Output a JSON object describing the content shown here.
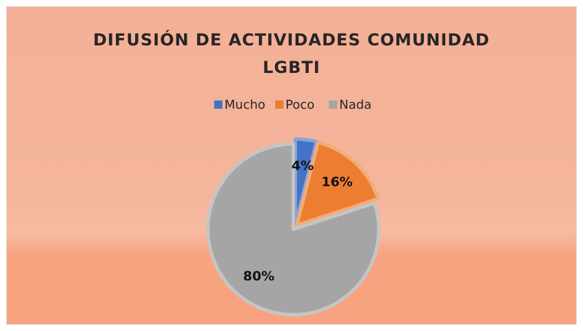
{
  "chart_data": {
    "type": "pie",
    "title": "DIFUSIÓN DE ACTIVIDADES COMUNIDAD LGBTI",
    "categories": [
      "Mucho",
      "Poco",
      "Nada"
    ],
    "values": [
      4,
      16,
      80
    ],
    "value_labels": [
      "4%",
      "16%",
      "80%"
    ],
    "colors": [
      "#4472c4",
      "#ed7d31",
      "#a5a5a5"
    ],
    "legend": "top"
  }
}
